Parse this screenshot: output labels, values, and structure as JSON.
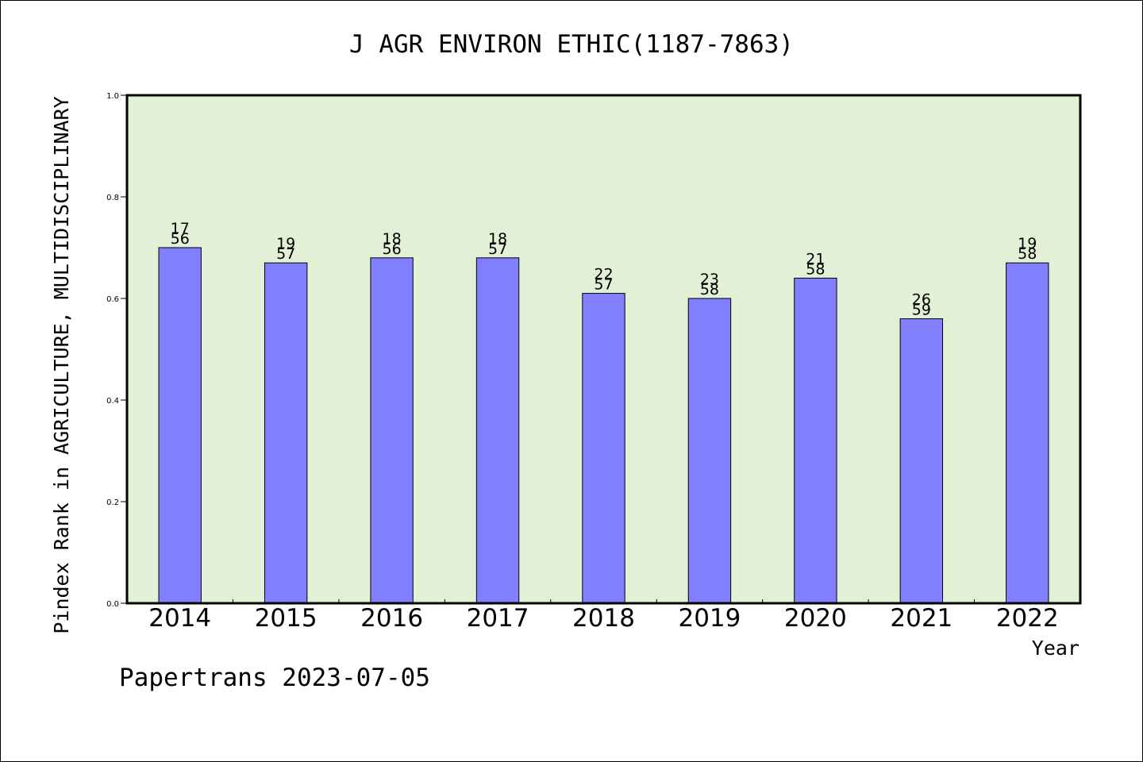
{
  "chart_data": {
    "type": "bar",
    "title": "J AGR ENVIRON ETHIC(1187-7863)",
    "xlabel": "Year",
    "ylabel": "Pindex Rank in AGRICULTURE, MULTIDISCIPLINARY",
    "ylim": [
      0,
      1.0
    ],
    "yticks": [
      "0.0",
      "0.2",
      "0.4",
      "0.6",
      "0.8",
      "1.0"
    ],
    "categories": [
      "2014",
      "2015",
      "2016",
      "2017",
      "2018",
      "2019",
      "2020",
      "2021",
      "2022"
    ],
    "values": [
      0.7,
      0.67,
      0.68,
      0.68,
      0.61,
      0.6,
      0.64,
      0.56,
      0.67
    ],
    "rank_labels": [
      [
        "17",
        "56"
      ],
      [
        "19",
        "57"
      ],
      [
        "18",
        "56"
      ],
      [
        "18",
        "57"
      ],
      [
        "22",
        "57"
      ],
      [
        "23",
        "58"
      ],
      [
        "21",
        "58"
      ],
      [
        "26",
        "59"
      ],
      [
        "19",
        "58"
      ]
    ],
    "grid": false,
    "colors": {
      "bar": "#8080ff",
      "plot_bg": "#e2f0d6"
    }
  },
  "footer": "Papertrans 2023-07-05"
}
